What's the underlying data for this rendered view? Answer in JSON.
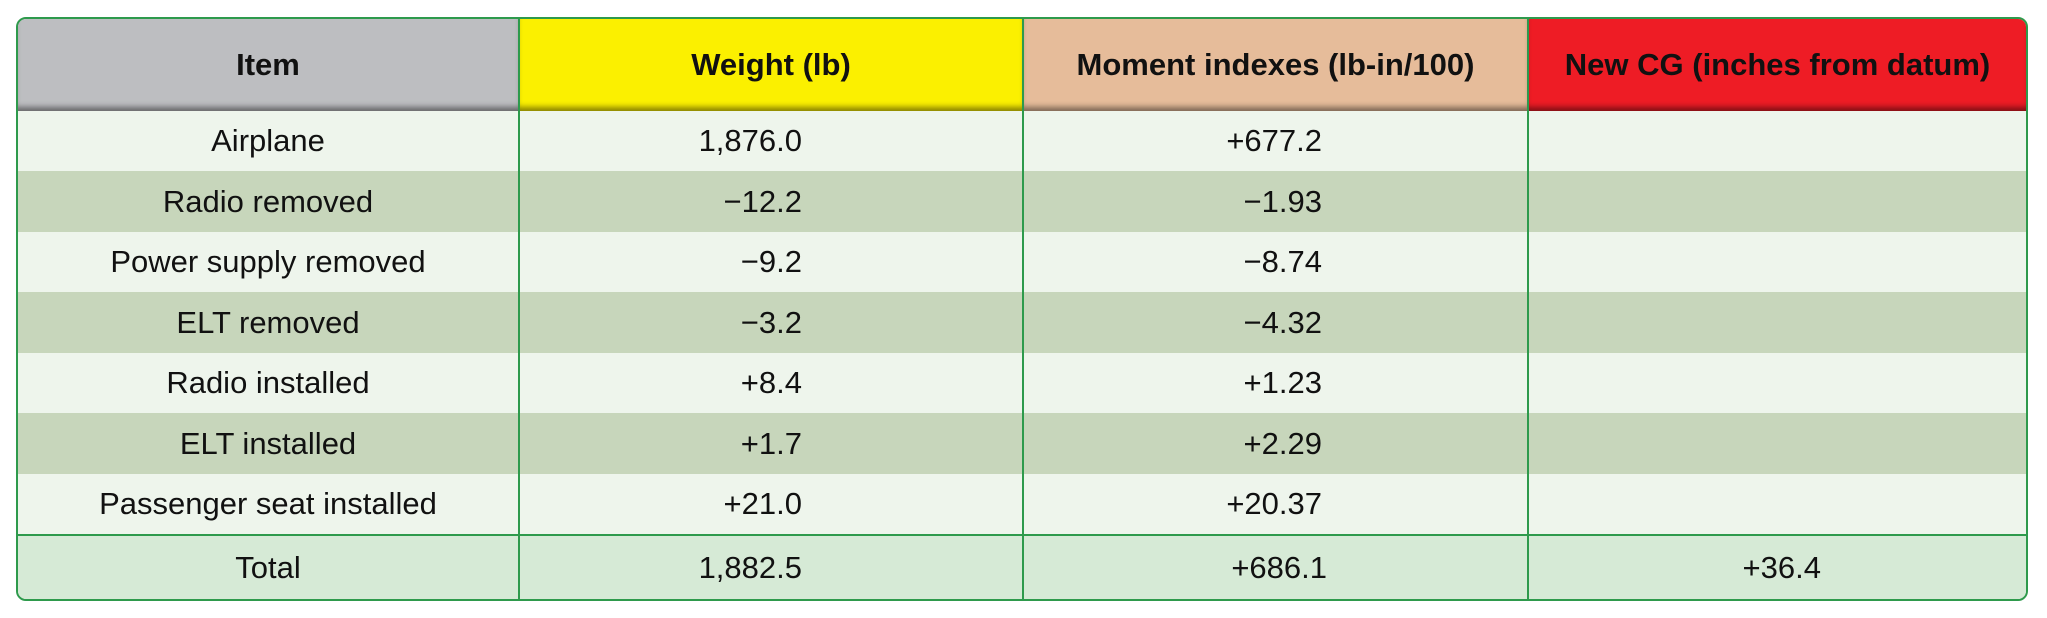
{
  "table": {
    "headers": {
      "item": "Item",
      "weight": "Weight (lb)",
      "moment": "Moment indexes (lb-in/100)",
      "new_cg": "New CG (inches from datum)"
    },
    "rows": [
      {
        "item": "Airplane",
        "weight": "1,876.0",
        "moment": "+677.2",
        "new_cg": ""
      },
      {
        "item": "Radio removed",
        "weight": "−12.2",
        "moment": "−1.93",
        "new_cg": ""
      },
      {
        "item": "Power supply removed",
        "weight": "−9.2",
        "moment": "−8.74",
        "new_cg": ""
      },
      {
        "item": "ELT removed",
        "weight": "−3.2",
        "moment": "−4.32",
        "new_cg": ""
      },
      {
        "item": "Radio installed",
        "weight": "+8.4",
        "moment": "+1.23",
        "new_cg": ""
      },
      {
        "item": "ELT installed",
        "weight": "+1.7",
        "moment": "+2.29",
        "new_cg": ""
      },
      {
        "item": "Passenger seat installed",
        "weight": "+21.0",
        "moment": "+20.37",
        "new_cg": ""
      }
    ],
    "total": {
      "item": "Total",
      "weight": "1,882.5",
      "moment": "+686.1",
      "new_cg": "+36.4"
    }
  },
  "colors": {
    "border": "#2e9a4c",
    "header_item": "#bdbec1",
    "header_weight": "#fbf000",
    "header_moment": "#e6bc9a",
    "header_cg": "#ee1c25",
    "row_light": "#eef5ec",
    "row_dark": "#c7d6bb",
    "row_total": "#d6ead6"
  }
}
